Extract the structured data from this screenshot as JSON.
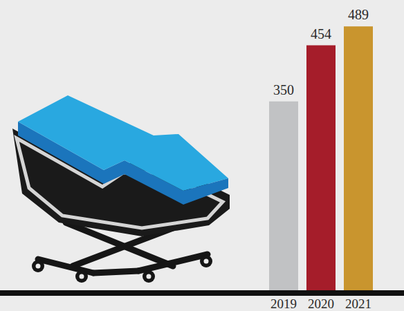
{
  "chart_data": {
    "type": "bar",
    "categories": [
      "2019",
      "2020",
      "2021"
    ],
    "values": [
      350,
      454,
      489
    ],
    "colors": [
      "#c1c2c4",
      "#a51d2a",
      "#c9952e"
    ],
    "ylim": [
      0,
      520
    ],
    "data_labels": true,
    "tick_labels": "x",
    "grid": false
  }
}
